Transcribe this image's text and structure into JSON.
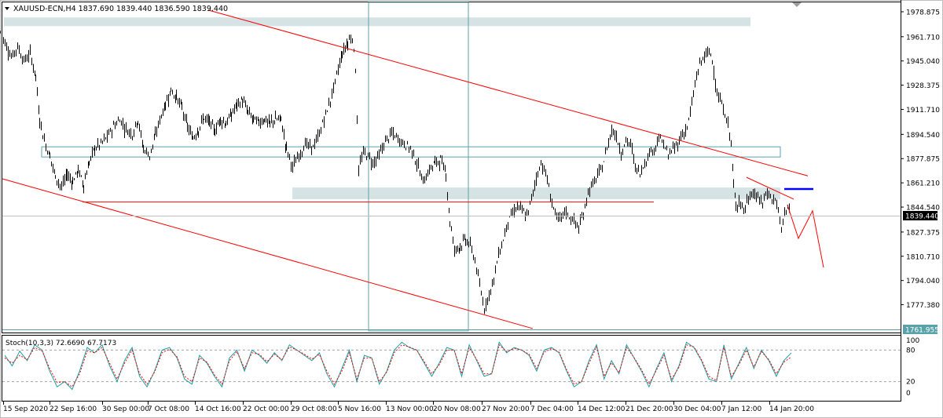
{
  "header": {
    "symbol_info": "XAUUSD-ECN,H4  1837.690 1839.440 1836.590 1839.440"
  },
  "indicator": {
    "label": "Stoch(10,3,3) 72.6690 67.7173"
  },
  "colors": {
    "candle": "#000000",
    "trendline": "#ff0000",
    "zone_fill": "#d5e3e5",
    "zone_stroke": "#5aa2aa",
    "stoch_main": "#1aa0a8",
    "stoch_signal": "#ff0000",
    "level_line": "#0000ff"
  },
  "chart_data": [
    {
      "type": "candlestick",
      "title": "XAUUSD-ECN,H4",
      "ohlc_last": {
        "open": 1837.69,
        "high": 1839.44,
        "low": 1836.59,
        "close": 1839.44
      },
      "ylim": [
        1761.955,
        1978.8
      ],
      "yticks": [
        "1978.875",
        "1961.710",
        "1945.040",
        "1928.375",
        "1911.710",
        "1894.540",
        "1877.875",
        "1861.210",
        "1844.540",
        "1827.375",
        "1810.710",
        "1794.040",
        "1777.380"
      ],
      "ytick_values": [
        1978.875,
        1961.71,
        1945.04,
        1928.375,
        1911.71,
        1894.54,
        1877.875,
        1861.21,
        1844.54,
        1827.375,
        1810.71,
        1794.04,
        1777.38
      ],
      "price_labels": [
        "1839.440",
        "1761.955"
      ],
      "xticks": [
        "15 Sep 2020",
        "22 Sep 16:00",
        "30 Sep 00:00",
        "7 Oct 08:00",
        "14 Oct 16:00",
        "22 Oct 00:00",
        "29 Oct 08:00",
        "5 Nov 16:00",
        "13 Nov 00:00",
        "20 Nov 08:00",
        "27 Nov 20:00",
        "7 Dec 04:00",
        "14 Dec 12:00",
        "21 Dec 20:00",
        "30 Dec 04:00",
        "7 Jan 12:00",
        "14 Jan 20:00"
      ],
      "close_path": [
        [
          0,
          1965
        ],
        [
          8,
          1955
        ],
        [
          14,
          1948
        ],
        [
          22,
          1955
        ],
        [
          30,
          1945
        ],
        [
          38,
          1950
        ],
        [
          45,
          1935
        ],
        [
          50,
          1905
        ],
        [
          56,
          1890
        ],
        [
          63,
          1880
        ],
        [
          70,
          1866
        ],
        [
          78,
          1858
        ],
        [
          85,
          1867
        ],
        [
          92,
          1862
        ],
        [
          99,
          1870
        ],
        [
          106,
          1860
        ],
        [
          113,
          1875
        ],
        [
          120,
          1885
        ],
        [
          128,
          1888
        ],
        [
          136,
          1893
        ],
        [
          144,
          1900
        ],
        [
          152,
          1905
        ],
        [
          160,
          1898
        ],
        [
          168,
          1895
        ],
        [
          175,
          1905
        ],
        [
          182,
          1885
        ],
        [
          190,
          1880
        ],
        [
          197,
          1893
        ],
        [
          203,
          1905
        ],
        [
          210,
          1915
        ],
        [
          217,
          1925
        ],
        [
          224,
          1920
        ],
        [
          231,
          1913
        ],
        [
          238,
          1900
        ],
        [
          245,
          1892
        ],
        [
          252,
          1898
        ],
        [
          259,
          1906
        ],
        [
          266,
          1903
        ],
        [
          273,
          1897
        ],
        [
          280,
          1905
        ],
        [
          287,
          1902
        ],
        [
          294,
          1908
        ],
        [
          301,
          1915
        ],
        [
          308,
          1918
        ],
        [
          315,
          1910
        ],
        [
          322,
          1905
        ],
        [
          329,
          1903
        ],
        [
          336,
          1905
        ],
        [
          343,
          1902
        ],
        [
          350,
          1905
        ],
        [
          357,
          1905
        ],
        [
          364,
          1885
        ],
        [
          372,
          1872
        ],
        [
          380,
          1880
        ],
        [
          388,
          1888
        ],
        [
          396,
          1885
        ],
        [
          404,
          1892
        ],
        [
          412,
          1905
        ],
        [
          420,
          1918
        ],
        [
          428,
          1935
        ],
        [
          435,
          1950
        ],
        [
          442,
          1958
        ],
        [
          448,
          1962
        ],
        [
          452,
          1940
        ],
        [
          456,
          1870
        ],
        [
          462,
          1882
        ],
        [
          468,
          1880
        ],
        [
          474,
          1875
        ],
        [
          482,
          1880
        ],
        [
          490,
          1890
        ],
        [
          498,
          1895
        ],
        [
          506,
          1892
        ],
        [
          514,
          1888
        ],
        [
          522,
          1885
        ],
        [
          530,
          1875
        ],
        [
          538,
          1862
        ],
        [
          546,
          1870
        ],
        [
          553,
          1875
        ],
        [
          560,
          1877
        ],
        [
          567,
          1868
        ],
        [
          572,
          1835
        ],
        [
          578,
          1815
        ],
        [
          585,
          1818
        ],
        [
          592,
          1822
        ],
        [
          598,
          1818
        ],
        [
          604,
          1808
        ],
        [
          610,
          1790
        ],
        [
          616,
          1775
        ],
        [
          622,
          1785
        ],
        [
          628,
          1795
        ],
        [
          634,
          1812
        ],
        [
          640,
          1822
        ],
        [
          646,
          1835
        ],
        [
          652,
          1840
        ],
        [
          658,
          1845
        ],
        [
          664,
          1842
        ],
        [
          670,
          1838
        ],
        [
          676,
          1850
        ],
        [
          682,
          1865
        ],
        [
          688,
          1875
        ],
        [
          694,
          1868
        ],
        [
          700,
          1852
        ],
        [
          706,
          1840
        ],
        [
          712,
          1835
        ],
        [
          718,
          1842
        ],
        [
          724,
          1838
        ],
        [
          730,
          1835
        ],
        [
          736,
          1830
        ],
        [
          742,
          1840
        ],
        [
          748,
          1855
        ],
        [
          754,
          1860
        ],
        [
          760,
          1866
        ],
        [
          766,
          1872
        ],
        [
          772,
          1885
        ],
        [
          778,
          1898
        ],
        [
          784,
          1893
        ],
        [
          790,
          1882
        ],
        [
          796,
          1890
        ],
        [
          802,
          1888
        ],
        [
          808,
          1872
        ],
        [
          814,
          1868
        ],
        [
          820,
          1875
        ],
        [
          826,
          1882
        ],
        [
          832,
          1885
        ],
        [
          838,
          1892
        ],
        [
          844,
          1888
        ],
        [
          850,
          1880
        ],
        [
          856,
          1884
        ],
        [
          862,
          1888
        ],
        [
          868,
          1895
        ],
        [
          874,
          1899
        ],
        [
          880,
          1915
        ],
        [
          886,
          1935
        ],
        [
          892,
          1945
        ],
        [
          898,
          1950
        ],
        [
          904,
          1950
        ],
        [
          908,
          1940
        ],
        [
          912,
          1922
        ],
        [
          918,
          1915
        ],
        [
          924,
          1905
        ],
        [
          930,
          1890
        ],
        [
          933,
          1860
        ],
        [
          936,
          1845
        ],
        [
          940,
          1850
        ],
        [
          946,
          1842
        ],
        [
          952,
          1850
        ],
        [
          958,
          1855
        ],
        [
          964,
          1850
        ],
        [
          970,
          1848
        ],
        [
          976,
          1855
        ],
        [
          982,
          1850
        ],
        [
          988,
          1848
        ],
        [
          994,
          1828
        ],
        [
          998,
          1842
        ],
        [
          1002,
          1845
        ],
        [
          1006,
          1840
        ]
      ],
      "annotations": {
        "trendlines": [
          {
            "name": "upper-channel",
            "from": [
              265,
              1980
            ],
            "to": [
              1028,
              1866
            ]
          },
          {
            "name": "lower-channel",
            "from": [
              3,
              1864
            ],
            "to": [
              678,
              1761
            ]
          },
          {
            "name": "support-line",
            "from": [
              105,
              1848
            ],
            "to": [
              832,
              1848
            ]
          },
          {
            "name": "short-trend",
            "from": [
              950,
              1865
            ],
            "to": [
              1010,
              1850
            ]
          }
        ],
        "zones": [
          {
            "name": "top-zone",
            "from": [
              5,
              1969
            ],
            "to": [
              955,
              1975
            ]
          },
          {
            "name": "mid-zone",
            "from": [
              53,
              1879
            ],
            "to": [
              993,
              1886
            ]
          },
          {
            "name": "lower-zone",
            "from": [
              372,
              1850
            ],
            "to": [
              993,
              1858
            ]
          }
        ],
        "vertical_box": {
          "from": [
            469,
            1762
          ],
          "to": [
            596,
            1983
          ]
        },
        "blue_level": {
          "from": [
            998,
            1857
          ],
          "to": [
            1035,
            1857
          ]
        },
        "projection": [
          [
            1002,
            1846
          ],
          [
            1016,
            1823
          ],
          [
            1034,
            1842
          ],
          [
            1048,
            1803
          ]
        ]
      }
    },
    {
      "type": "line",
      "title": "Stoch(10,3,3)",
      "ylim": [
        0,
        100
      ],
      "yticks": [
        "100",
        "80",
        "20",
        "0"
      ],
      "levels": [
        80,
        20
      ],
      "series": [
        {
          "name": "main",
          "values": [
            70,
            50,
            78,
            60,
            90,
            80,
            40,
            10,
            20,
            5,
            40,
            85,
            75,
            90,
            50,
            20,
            60,
            85,
            30,
            10,
            40,
            80,
            85,
            65,
            25,
            15,
            70,
            55,
            30,
            10,
            65,
            80,
            40,
            80,
            70,
            55,
            75,
            60,
            90,
            80,
            70,
            60,
            75,
            35,
            10,
            45,
            80,
            20,
            70,
            65,
            15,
            40,
            80,
            95,
            85,
            80,
            55,
            30,
            55,
            85,
            80,
            30,
            90,
            60,
            30,
            35,
            95,
            75,
            85,
            80,
            70,
            40,
            80,
            85,
            75,
            40,
            10,
            20,
            60,
            90,
            25,
            60,
            35,
            90,
            65,
            40,
            10,
            45,
            75,
            20,
            50,
            95,
            85,
            60,
            25,
            20,
            90,
            25,
            55,
            85,
            45,
            80,
            60,
            30,
            60,
            75
          ]
        },
        {
          "name": "signal",
          "values": [
            65,
            55,
            70,
            62,
            85,
            78,
            45,
            18,
            20,
            10,
            35,
            78,
            75,
            85,
            55,
            25,
            55,
            80,
            35,
            15,
            38,
            75,
            82,
            67,
            30,
            20,
            65,
            57,
            33,
            15,
            60,
            77,
            45,
            75,
            72,
            58,
            72,
            62,
            86,
            80,
            72,
            63,
            72,
            40,
            15,
            40,
            75,
            25,
            65,
            65,
            20,
            38,
            75,
            90,
            86,
            80,
            58,
            35,
            52,
            80,
            80,
            35,
            85,
            62,
            35,
            35,
            90,
            77,
            83,
            80,
            72,
            45,
            76,
            83,
            76,
            43,
            15,
            20,
            55,
            86,
            30,
            56,
            37,
            85,
            66,
            43,
            15,
            42,
            70,
            25,
            47,
            90,
            86,
            62,
            30,
            22,
            85,
            30,
            52,
            80,
            48,
            77,
            62,
            35,
            57,
            67
          ]
        }
      ]
    }
  ]
}
